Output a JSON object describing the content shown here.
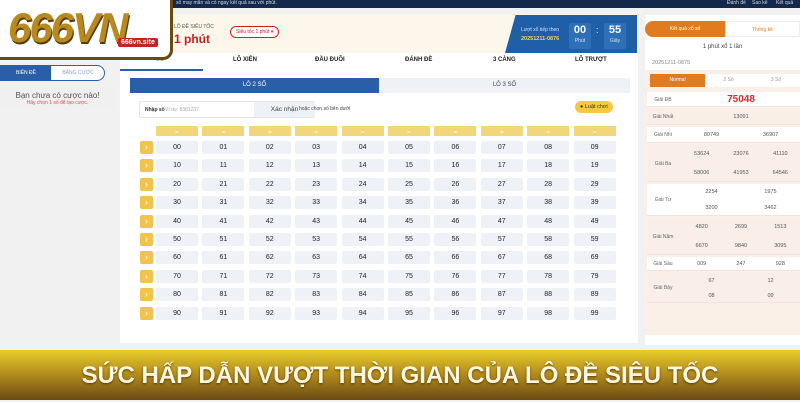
{
  "topbar": {
    "text": "số may mắn và có ngay kết quả sau với phút.",
    "links": [
      "Đánh đề",
      "Sao kê",
      "Kết quả"
    ]
  },
  "logo": {
    "text": "666VN",
    "site": "666vn.site"
  },
  "header": {
    "subtitle": "LÔ ĐỀ SIÊU TỐC",
    "title": "1 phút",
    "mode_select": "Siêu tốc 1 phút ▾"
  },
  "countdown": {
    "label": "Lượt xổ tiếp theo",
    "draw_id": "20251211-0876",
    "minutes": "00",
    "minutes_label": "Phút",
    "seconds": "55",
    "seconds_label": "Giây"
  },
  "sidebar": {
    "tabs": [
      "BIÊN ĐỀ",
      "BẢNG CƯỢC"
    ],
    "empty_title": "Bạn chưa có cược nào!",
    "empty_hint": "Hãy chọn 1 số để tạo cược."
  },
  "main": {
    "tabs": [
      "LÔ",
      "LÔ XIÊN",
      "ĐẦU ĐUÔI",
      "ĐÁNH ĐỀ",
      "3 CÀNG",
      "LÔ TRƯỢT"
    ],
    "subtabs": [
      "LÔ 2 SỐ",
      "LÔ 3 SỐ"
    ],
    "input_label": "Nhập số",
    "input_placeholder": "Ví dụ: 8383237",
    "confirm_button": "Xác nhận",
    "or_text": "hoặc chọn số bên dưới",
    "rules_button": "Luật chơi"
  },
  "grid": [
    [
      "00",
      "01",
      "02",
      "03",
      "04",
      "05",
      "06",
      "07",
      "08",
      "09"
    ],
    [
      "10",
      "11",
      "12",
      "13",
      "14",
      "15",
      "16",
      "17",
      "18",
      "19"
    ],
    [
      "20",
      "21",
      "22",
      "23",
      "24",
      "25",
      "26",
      "27",
      "28",
      "29"
    ],
    [
      "30",
      "31",
      "32",
      "33",
      "34",
      "35",
      "36",
      "37",
      "38",
      "39"
    ],
    [
      "40",
      "41",
      "42",
      "43",
      "44",
      "45",
      "46",
      "47",
      "48",
      "49"
    ],
    [
      "50",
      "51",
      "52",
      "53",
      "54",
      "55",
      "56",
      "57",
      "58",
      "59"
    ],
    [
      "60",
      "61",
      "62",
      "63",
      "64",
      "65",
      "66",
      "67",
      "68",
      "69"
    ],
    [
      "70",
      "71",
      "72",
      "73",
      "74",
      "75",
      "76",
      "77",
      "78",
      "79"
    ],
    [
      "80",
      "81",
      "82",
      "83",
      "84",
      "85",
      "86",
      "87",
      "88",
      "89"
    ],
    [
      "90",
      "91",
      "92",
      "93",
      "94",
      "95",
      "96",
      "97",
      "98",
      "99"
    ]
  ],
  "results": {
    "tabs": [
      "Kết quả xổ số",
      "Thống kê"
    ],
    "frequency": "1 phút xổ 1 lần",
    "draw_id": "20251211-0875",
    "modes": [
      "Normal",
      "2 Số",
      "3 Số"
    ],
    "prizes": [
      {
        "label": "Giải ĐB",
        "values": [
          [
            "75048"
          ]
        ]
      },
      {
        "label": "Giải Nhất",
        "values": [
          [
            "13091"
          ]
        ]
      },
      {
        "label": "Giải Nhì",
        "values": [
          [
            "80749",
            "36907"
          ]
        ]
      },
      {
        "label": "Giải Ba",
        "values": [
          [
            "53624",
            "23076",
            "41110"
          ],
          [
            "58006",
            "41953",
            "64546"
          ]
        ]
      },
      {
        "label": "Giải Tư",
        "values": [
          [
            "2254",
            "1975"
          ],
          [
            "3200",
            "3462"
          ]
        ]
      },
      {
        "label": "Giải Năm",
        "values": [
          [
            "4820",
            "2699",
            "1513"
          ],
          [
            "6670",
            "9840",
            "3095"
          ]
        ]
      },
      {
        "label": "Giải Sáu",
        "values": [
          [
            "009",
            "247",
            "928"
          ]
        ]
      },
      {
        "label": "Giải Bảy",
        "values": [
          [
            "67",
            "12"
          ],
          [
            "08",
            "09"
          ]
        ]
      }
    ]
  },
  "banner": {
    "text": "SỨC HẤP DẪN VƯỢT THỜI GIAN CỦA LÔ ĐỀ SIÊU TỐC"
  },
  "colors": {
    "navy": "#13284b",
    "blue": "#1f5fa8",
    "orange": "#e07b1f",
    "gold": "#f1d77a",
    "red": "#d62b2b"
  }
}
